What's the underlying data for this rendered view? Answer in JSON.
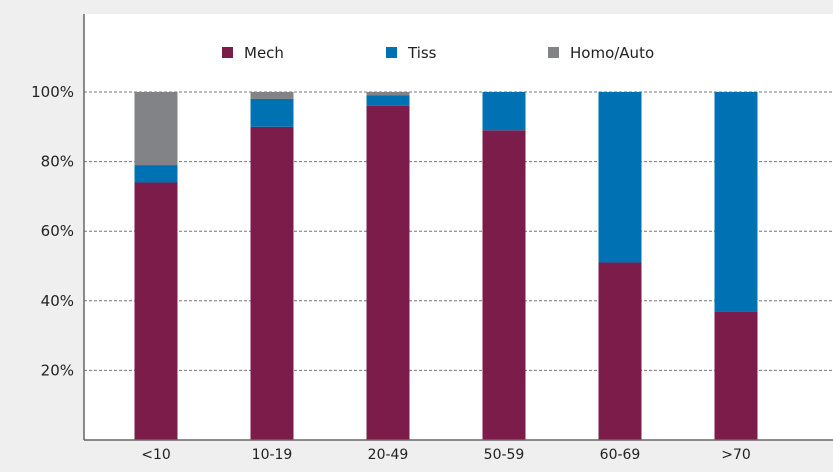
{
  "chart_data": {
    "type": "bar",
    "stacked": true,
    "categories": [
      "<10",
      "10-19",
      "20-49",
      "50-59",
      "60-69",
      ">70"
    ],
    "series": [
      {
        "name": "Mech",
        "color": "#7b1c4a",
        "values": [
          74,
          90,
          96,
          89,
          51,
          37
        ]
      },
      {
        "name": "Tiss",
        "color": "#0071b3",
        "values": [
          5,
          8,
          3,
          11,
          49,
          63
        ]
      },
      {
        "name": "Homo/Auto",
        "color": "#818386",
        "values": [
          21,
          2,
          1,
          0,
          0,
          0
        ]
      }
    ],
    "yticks": [
      "20%",
      "40%",
      "60%",
      "80%",
      "100%"
    ],
    "ytick_values": [
      20,
      40,
      60,
      80,
      100
    ],
    "ylim": [
      0,
      100
    ],
    "grid": true,
    "legend_position": "top"
  }
}
